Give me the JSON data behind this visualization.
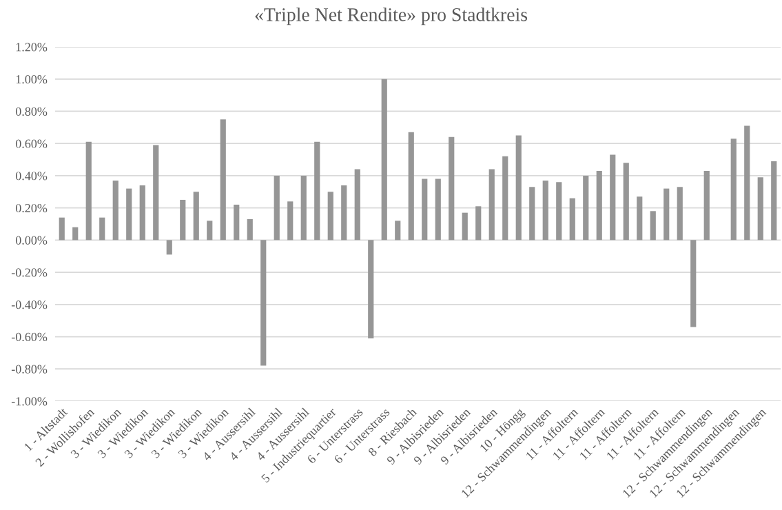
{
  "chart_data": {
    "type": "bar",
    "title": "«Triple Net Rendite» pro Stadtkreis",
    "categories": [
      "1 - Altstadt",
      null,
      "2 - Wollishofen",
      null,
      "3 - Wiedikon",
      null,
      "3 - Wiedikon",
      null,
      "3 - Wiedikon",
      null,
      "3 - Wiedikon",
      null,
      "3 - Wiedikon",
      null,
      "4 - Aussersihl",
      null,
      "4 - Aussersihl",
      null,
      "4 - Aussersihl",
      null,
      "5 - Industriequartier",
      null,
      "6 - Unterstrass",
      null,
      "6 - Unterstrass",
      null,
      "8 - Riesbach",
      null,
      "9 - Albisrieden",
      null,
      "9 - Albisrieden",
      null,
      "9 - Albisrieden",
      null,
      "10 - Höngg",
      null,
      "12 - Schwammendingen",
      null,
      "11 - Affoltern",
      null,
      "11 - Affoltern",
      null,
      "11 - Affoltern",
      null,
      "11 - Affoltern",
      null,
      "11 - Affoltern",
      null,
      "12 - Schwammendingen",
      null,
      "12 - Schwammendingen",
      null,
      "12 - Schwammendingen",
      null
    ],
    "values": [
      0.14,
      0.08,
      0.61,
      0.14,
      0.37,
      0.32,
      0.34,
      0.59,
      -0.09,
      0.25,
      0.3,
      0.12,
      0.75,
      0.22,
      0.13,
      -0.78,
      0.4,
      0.24,
      0.4,
      0.61,
      0.3,
      0.34,
      0.44,
      -0.61,
      1.0,
      0.12,
      0.67,
      0.38,
      0.38,
      0.64,
      0.17,
      0.21,
      0.44,
      0.52,
      0.65,
      0.33,
      0.37,
      0.36,
      0.26,
      0.4,
      0.43,
      0.53,
      0.48,
      0.27,
      0.18,
      0.32,
      0.33,
      -0.54,
      0.43,
      null,
      0.63,
      0.71,
      0.39,
      0.49
    ],
    "color": "#969696",
    "ylim": [
      -1.0,
      1.2
    ],
    "yticks": [
      {
        "value": -1.0,
        "label": "-1.00%"
      },
      {
        "value": -0.8,
        "label": "-0.80%"
      },
      {
        "value": -0.6,
        "label": "-0.60%"
      },
      {
        "value": -0.4,
        "label": "-0.40%"
      },
      {
        "value": -0.2,
        "label": "-0.20%"
      },
      {
        "value": 0.0,
        "label": "0.00%"
      },
      {
        "value": 0.2,
        "label": "0.20%"
      },
      {
        "value": 0.4,
        "label": "0.40%"
      },
      {
        "value": 0.6,
        "label": "0.60%"
      },
      {
        "value": 0.8,
        "label": "0.80%"
      },
      {
        "value": 1.0,
        "label": "1.00%"
      },
      {
        "value": 1.2,
        "label": "1.20%"
      }
    ],
    "grid": "y"
  }
}
